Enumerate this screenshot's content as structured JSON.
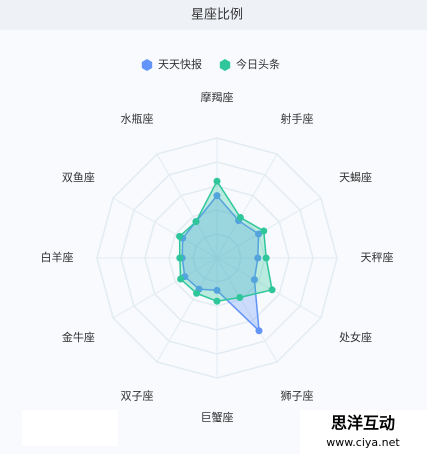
{
  "chart_data": {
    "type": "radar",
    "title": "星座比例",
    "categories": [
      "摩羯座",
      "射手座",
      "天蝎座",
      "天秤座",
      "处女座",
      "狮子座",
      "巨蟹座",
      "双子座",
      "金牛座",
      "白羊座",
      "双鱼座",
      "水瓶座"
    ],
    "rlim": [
      0,
      100
    ],
    "series": [
      {
        "name": "天天快报",
        "color": "#6394f9",
        "values": [
          52,
          36,
          40,
          34,
          36,
          70,
          27,
          30,
          31,
          29,
          33,
          35
        ]
      },
      {
        "name": "今日头条",
        "color": "#2fc69b",
        "values": [
          64,
          39,
          45,
          41,
          53,
          38,
          36,
          34,
          35,
          31,
          36,
          35
        ]
      }
    ]
  },
  "watermark": {
    "brand": "思洋互动",
    "url": "www.ciya.net"
  }
}
